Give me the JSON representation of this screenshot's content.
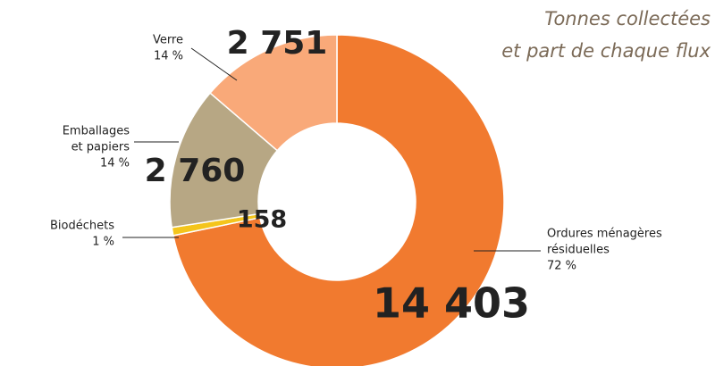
{
  "chart_data": {
    "type": "donut",
    "title": [
      "Tonnes collectées",
      "et part de chaque flux"
    ],
    "categories": [
      [
        "Ordures ménagères",
        "résiduelles"
      ],
      [
        "Biodéchets"
      ],
      [
        "Emballages",
        "et papiers"
      ],
      [
        "Verre"
      ]
    ],
    "values": [
      14403,
      158,
      2760,
      2751
    ],
    "value_labels": [
      "14 403",
      "158",
      "2 760",
      "2 751"
    ],
    "shares": [
      72,
      1,
      14,
      14
    ],
    "share_labels": [
      "72 %",
      "1 %",
      "14 %",
      "14 %"
    ],
    "colors": [
      "#f17a2f",
      "#f4c51c",
      "#b7a784",
      "#f9a979"
    ]
  }
}
